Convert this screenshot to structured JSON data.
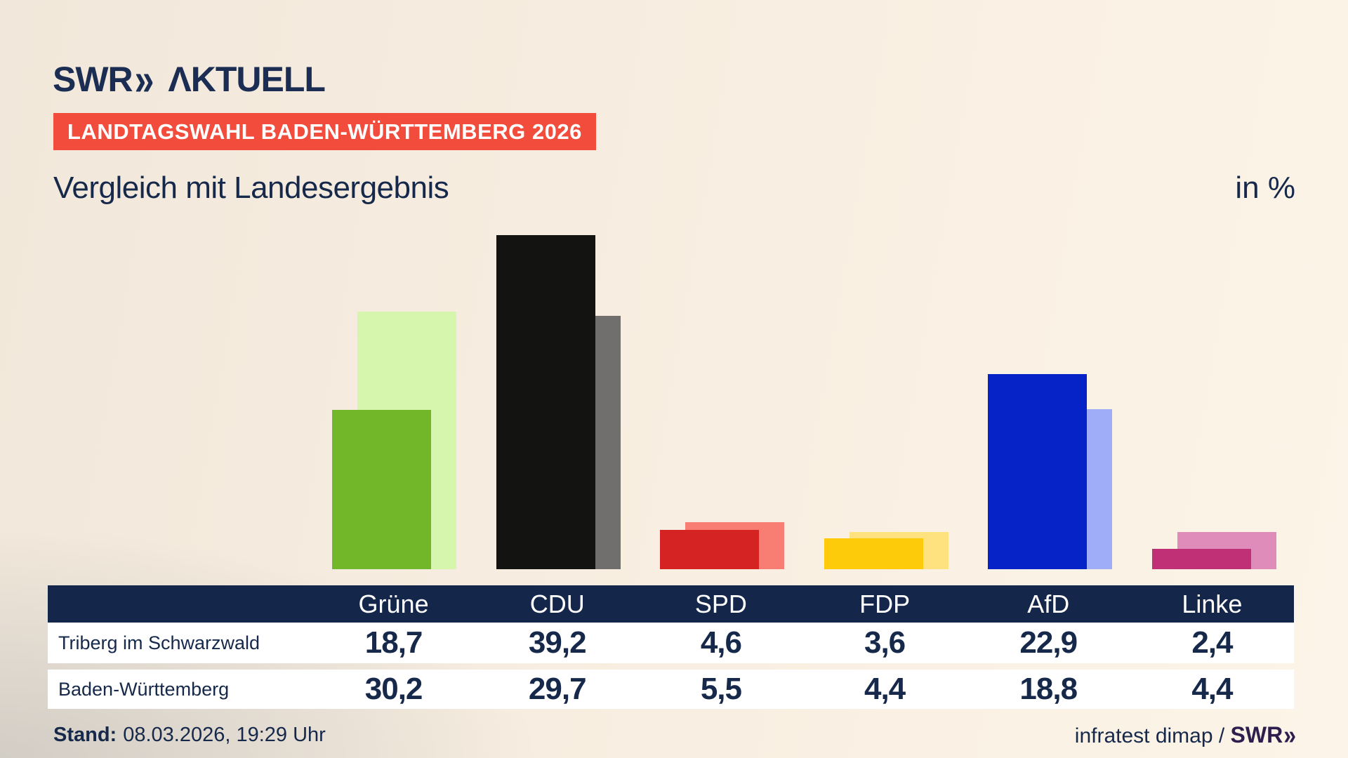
{
  "header": {
    "logo": {
      "brand": "SWR",
      "chevron": "»",
      "product": "ΛKTUELL"
    },
    "badge_label": "LANDTAGSWAHL BADEN-WÜRTTEMBERG 2026",
    "title": "Vergleich mit Landesergebnis",
    "unit_label": "in %"
  },
  "chart_data": {
    "type": "bar",
    "title": "Vergleich mit Landesergebnis",
    "unit": "%",
    "categories": [
      "Grüne",
      "CDU",
      "SPD",
      "FDP",
      "AfD",
      "Linke"
    ],
    "series": [
      {
        "name": "Triberg im Schwarzwald",
        "role": "municipality-front-bars",
        "values": [
          18.7,
          39.2,
          4.6,
          3.6,
          22.9,
          2.4
        ],
        "colors": [
          "#72b62a",
          "#131312",
          "#d42322",
          "#fecb0a",
          "#0623c8",
          "#c03077"
        ]
      },
      {
        "name": "Baden-Württemberg",
        "role": "state-back-bars",
        "values": [
          30.2,
          29.7,
          5.5,
          4.4,
          18.8,
          4.4
        ],
        "colors": [
          "#d6f6ae",
          "#706f6e",
          "#f87d72",
          "#fee27f",
          "#9fadf9",
          "#df8cba"
        ]
      }
    ],
    "ylim": [
      0,
      40
    ],
    "grid": false,
    "legend": "none",
    "value_format": "decimal-comma"
  },
  "table": {
    "columns": [
      "Grüne",
      "CDU",
      "SPD",
      "FDP",
      "AfD",
      "Linke"
    ],
    "rows": [
      {
        "label": "Triberg im Schwarzwald",
        "values": [
          "18,7",
          "39,2",
          "4,6",
          "3,6",
          "22,9",
          "2,4"
        ]
      },
      {
        "label": "Baden-Württemberg",
        "values": [
          "30,2",
          "29,7",
          "5,5",
          "4,4",
          "18,8",
          "4,4"
        ]
      }
    ]
  },
  "footer": {
    "stand_label": "Stand:",
    "stand_value": "08.03.2026, 19:29 Uhr",
    "source_text": "infratest dimap / ",
    "source_brand": "SWR",
    "source_brand_chevron": "»"
  },
  "colors": {
    "background_beige": "#f6ecdf",
    "background_gray": "#d2cdc5",
    "badge_bg": "#f24c3d",
    "badge_text": "#ffffff",
    "navy_text": "#16294b",
    "logo_navy": "#1b2d52",
    "table_header_bg": "#14274b",
    "table_row_bg": "#ffffff",
    "source_brand_color": "#2e1e4e"
  }
}
